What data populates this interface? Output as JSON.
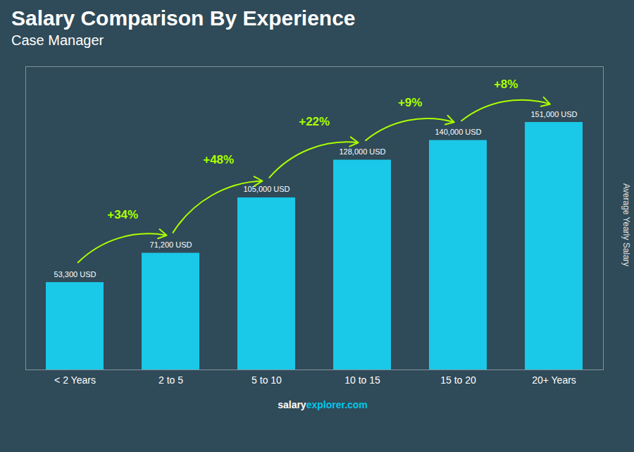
{
  "chart_data": {
    "type": "bar",
    "title": "Salary Comparison By Experience",
    "subtitle": "Case Manager",
    "ylabel": "Average Yearly Salary",
    "footer": [
      "salary",
      "explorer.com"
    ],
    "categories": [
      "< 2 Years",
      "2 to 5",
      "5 to 10",
      "10 to 15",
      "15 to 20",
      "20+ Years"
    ],
    "values": [
      53300,
      71200,
      105000,
      128000,
      140000,
      151000
    ],
    "value_labels": [
      "53,300 USD",
      "71,200 USD",
      "105,000 USD",
      "128,000 USD",
      "140,000 USD",
      "151,000 USD"
    ],
    "data_labels": true,
    "color": "#1ac8e8",
    "ylim": [
      0,
      185000
    ],
    "tick_labels": "x",
    "grid": false,
    "annotations": [
      {
        "from": "< 2 Years",
        "to": "2 to 5",
        "text": "+34%",
        "color": "#aaff00"
      },
      {
        "from": "2 to 5",
        "to": "5 to 10",
        "text": "+48%",
        "color": "#aaff00"
      },
      {
        "from": "5 to 10",
        "to": "10 to 15",
        "text": "+22%",
        "color": "#aaff00"
      },
      {
        "from": "10 to 15",
        "to": "15 to 20",
        "text": "+9%",
        "color": "#aaff00"
      },
      {
        "from": "15 to 20",
        "to": "20+ Years",
        "text": "+8%",
        "color": "#aaff00"
      }
    ]
  }
}
